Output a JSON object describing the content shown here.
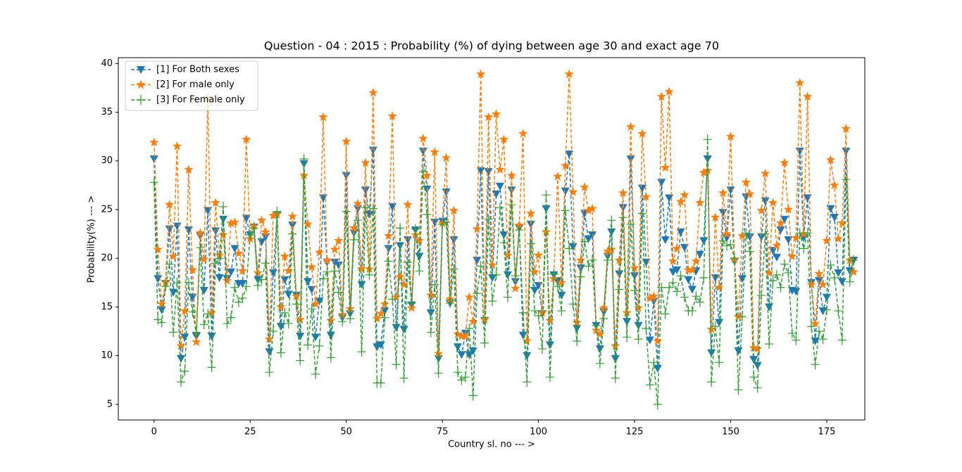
{
  "chart_data": {
    "type": "line",
    "title": "Question - 04 : 2015 : Probability (%) of dying between age 30 and exact age 70",
    "x_label": "Country sl. no --- >",
    "y_label": "Probability(%) --- >",
    "x": [
      0,
      1,
      2,
      3,
      4,
      5,
      6,
      7,
      8,
      9,
      10,
      11,
      12,
      13,
      14,
      15,
      16,
      17,
      18,
      19,
      20,
      21,
      22,
      23,
      24,
      25,
      26,
      27,
      28,
      29,
      30,
      31,
      32,
      33,
      34,
      35,
      36,
      37,
      38,
      39,
      40,
      41,
      42,
      43,
      44,
      45,
      46,
      47,
      48,
      49,
      50,
      51,
      52,
      53,
      54,
      55,
      56,
      57,
      58,
      59,
      60,
      61,
      62,
      63,
      64,
      65,
      66,
      67,
      68,
      69,
      70,
      71,
      72,
      73,
      74,
      75,
      76,
      77,
      78,
      79,
      80,
      81,
      82,
      83,
      84,
      85,
      86,
      87,
      88,
      89,
      90,
      91,
      92,
      93,
      94,
      95,
      96,
      97,
      98,
      99,
      100,
      101,
      102,
      103,
      104,
      105,
      106,
      107,
      108,
      109,
      110,
      111,
      112,
      113,
      114,
      115,
      116,
      117,
      118,
      119,
      120,
      121,
      122,
      123,
      124,
      125,
      126,
      127,
      128,
      129,
      130,
      131,
      132,
      133,
      134,
      135,
      136,
      137,
      138,
      139,
      140,
      141,
      142,
      143,
      144,
      145,
      146,
      147,
      148,
      149,
      150,
      151,
      152,
      153,
      154,
      155,
      156,
      157,
      158,
      159,
      160,
      161,
      162,
      163,
      164,
      165,
      166,
      167,
      168,
      169,
      170,
      171,
      172,
      173,
      174,
      175,
      176,
      177,
      178,
      179,
      180,
      181,
      182
    ],
    "series": [
      {
        "name": "[1] For Both sexes",
        "color": "#1f77b4",
        "marker": "triangle-down",
        "values": [
          30.2,
          17.9,
          14.7,
          17.4,
          23.0,
          16.5,
          23.3,
          9.7,
          11.9,
          22.9,
          16.0,
          12.0,
          22.3,
          16.7,
          24.9,
          12.0,
          22.8,
          18.0,
          24.0,
          17.9,
          18.6,
          21.0,
          17.4,
          17.4,
          24.1,
          22.4,
          23.2,
          17.8,
          21.7,
          22.2,
          10.4,
          18.5,
          24.4,
          13.0,
          17.8,
          16.3,
          23.4,
          16.2,
          12.0,
          29.7,
          17.6,
          16.8,
          11.9,
          15.6,
          26.2,
          19.6,
          12.1,
          19.6,
          19.3,
          13.9,
          28.5,
          14.3,
          22.6,
          25.1,
          17.3,
          27.0,
          24.5,
          31.1,
          10.9,
          11.1,
          14.6,
          21.0,
          25.3,
          12.9,
          21.3,
          12.7,
          21.9,
          15.2,
          22.9,
          20.2,
          31.0,
          27.1,
          14.4,
          23.7,
          9.7,
          23.8,
          26.8,
          15.4,
          21.9,
          10.9,
          10.1,
          12.3,
          10.1,
          10.5,
          19.8,
          29.0,
          13.6,
          28.9,
          18.0,
          26.6,
          27.4,
          22.4,
          18.3,
          27.0,
          17.6,
          23.1,
          12.1,
          10.0,
          23.5,
          16.7,
          17.2,
          14.3,
          25.1,
          11.1,
          18.3,
          17.7,
          16.2,
          26.9,
          30.7,
          21.2,
          12.8,
          19.0,
          24.6,
          22.0,
          22.4,
          13.1,
          10.7,
          14.5,
          20.2,
          22.7,
          9.7,
          18.4,
          25.2,
          13.5,
          30.2,
          18.2,
          13.1,
          27.2,
          19.6,
          11.6,
          15.6,
          8.7,
          27.8,
          21.9,
          26.2,
          18.6,
          18.8,
          22.7,
          21.1,
          17.8,
          16.8,
          18.7,
          20.4,
          21.8,
          30.2,
          10.3,
          18.0,
          13.4,
          24.7,
          22.1,
          27.0,
          19.7,
          10.5,
          17.9,
          26.3,
          22.2,
          9.6,
          9.0,
          22.2,
          25.9,
          15.0,
          20.8,
          20.1,
          22.9,
          24.0,
          21.9,
          16.7,
          16.6,
          31.0,
          22.1,
          26.2,
          17.5,
          11.5,
          17.7,
          14.6,
          16.0,
          25.1,
          24.2,
          18.5,
          17.6,
          31.0,
          18.7,
          19.8
        ]
      },
      {
        "name": "[2] For male only",
        "color": "#ff7f0e",
        "marker": "star",
        "values": [
          31.9,
          20.9,
          15.3,
          17.5,
          25.5,
          20.2,
          31.5,
          11.0,
          14.6,
          29.1,
          18.8,
          11.4,
          22.6,
          19.9,
          36.5,
          14.4,
          25.7,
          20.3,
          22.4,
          17.7,
          23.6,
          23.7,
          20.5,
          18.7,
          32.2,
          22.0,
          23.3,
          18.5,
          23.9,
          22.7,
          11.7,
          24.4,
          24.5,
          15.0,
          20.2,
          18.7,
          24.3,
          16.1,
          13.7,
          28.5,
          23.5,
          19.1,
          15.3,
          20.6,
          34.5,
          19.8,
          13.6,
          20.9,
          21.8,
          14.2,
          32.0,
          14.8,
          23.1,
          25.6,
          18.9,
          29.8,
          18.9,
          37.0,
          13.8,
          14.3,
          15.3,
          22.3,
          34.6,
          16.0,
          18.1,
          17.3,
          25.5,
          14.9,
          22.4,
          21.8,
          32.3,
          28.5,
          16.2,
          30.9,
          10.2,
          23.6,
          30.3,
          15.8,
          24.9,
          12.2,
          12.0,
          12.0,
          16.0,
          13.5,
          23.0,
          38.9,
          13.7,
          34.5,
          19.3,
          34.8,
          29.1,
          32.2,
          20.3,
          28.5,
          16.9,
          23.4,
          32.8,
          11.5,
          24.6,
          18.6,
          20.3,
          14.4,
          22.7,
          13.6,
          17.9,
          28.4,
          17.5,
          29.5,
          38.9,
          26.8,
          13.4,
          19.8,
          27.3,
          24.9,
          25.1,
          12.6,
          12.2,
          14.9,
          20.7,
          20.9,
          11.0,
          19.8,
          26.7,
          14.4,
          33.5,
          19.0,
          14.9,
          32.8,
          26.3,
          15.9,
          16.1,
          11.5,
          36.6,
          29.3,
          37.1,
          19.7,
          21.0,
          25.8,
          26.5,
          18.8,
          18.8,
          19.7,
          25.7,
          28.8,
          29.0,
          12.7,
          24.2,
          17.0,
          26.7,
          22.5,
          32.5,
          19.9,
          14.0,
          22.3,
          27.8,
          26.6,
          10.8,
          10.7,
          24.9,
          28.7,
          18.5,
          25.7,
          21.3,
          23.6,
          29.8,
          25.0,
          20.2,
          22.1,
          38.0,
          22.5,
          36.6,
          17.3,
          13.3,
          18.4,
          17.3,
          21.8,
          30.1,
          27.5,
          22.0,
          23.6,
          33.3,
          19.8,
          18.6
        ]
      },
      {
        "name": "[3] For Female only",
        "color": "#2ca02c",
        "marker": "plus",
        "values": [
          27.8,
          13.7,
          13.4,
          17.1,
          19.4,
          12.4,
          17.5,
          7.3,
          8.4,
          17.5,
          14.5,
          12.4,
          21.1,
          13.2,
          14.3,
          8.8,
          19.5,
          20.0,
          25.3,
          13.3,
          13.9,
          17.0,
          15.5,
          15.9,
          17.1,
          22.4,
          23.1,
          17.2,
          17.8,
          19.5,
          8.3,
          12.5,
          24.8,
          10.3,
          14.4,
          13.3,
          22.5,
          15.3,
          9.5,
          30.2,
          11.1,
          14.8,
          8.1,
          11.0,
          17.9,
          18.6,
          9.8,
          18.7,
          16.5,
          13.5,
          24.8,
          13.8,
          21.9,
          23.9,
          10.4,
          25.2,
          18.3,
          25.1,
          7.2,
          7.2,
          13.9,
          19.7,
          15.8,
          9.1,
          23.1,
          7.7,
          19.6,
          15.4,
          23.0,
          18.7,
          28.9,
          24.5,
          12.4,
          17.3,
          8.2,
          23.5,
          23.7,
          15.4,
          18.9,
          8.3,
          7.5,
          7.8,
          12.8,
          5.9,
          16.4,
          19.2,
          11.3,
          24.0,
          15.6,
          18.3,
          25.2,
          21.6,
          16.0,
          25.5,
          18.2,
          22.9,
          14.4,
          7.3,
          21.5,
          14.6,
          14.1,
          10.7,
          26.5,
          7.8,
          18.4,
          17.1,
          14.6,
          24.9,
          21.0,
          15.3,
          11.5,
          18.1,
          21.7,
          19.2,
          19.8,
          13.1,
          9.2,
          13.8,
          19.8,
          23.9,
          7.7,
          16.8,
          24.2,
          11.9,
          23.5,
          16.7,
          11.7,
          24.6,
          12.8,
          7.0,
          9.3,
          5.0,
          17.0,
          14.3,
          17.0,
          17.5,
          16.6,
          18.2,
          16.0,
          14.6,
          14.6,
          16.1,
          15.5,
          18.0,
          32.2,
          7.3,
          13.0,
          9.3,
          21.8,
          21.3,
          21.4,
          20.0,
          6.5,
          14.0,
          22.6,
          20.7,
          7.8,
          6.7,
          16.2,
          22.5,
          11.2,
          17.7,
          18.3,
          17.0,
          19.4,
          18.5,
          12.3,
          11.6,
          22.6,
          21.0,
          22.6,
          13.0,
          9.1,
          12.5,
          11.7,
          14.7,
          19.3,
          18.0,
          14.6,
          11.6,
          28.1,
          17.6,
          19.8
        ]
      }
    ],
    "xlim": [
      -9.3,
      184.9
    ],
    "ylim": [
      3.4,
      40.6
    ],
    "xticks": [
      0,
      25,
      50,
      75,
      100,
      125,
      150,
      175
    ],
    "yticks": [
      5,
      10,
      15,
      20,
      25,
      30,
      35,
      40
    ],
    "line_style": "dashed",
    "legend": "upper left"
  }
}
